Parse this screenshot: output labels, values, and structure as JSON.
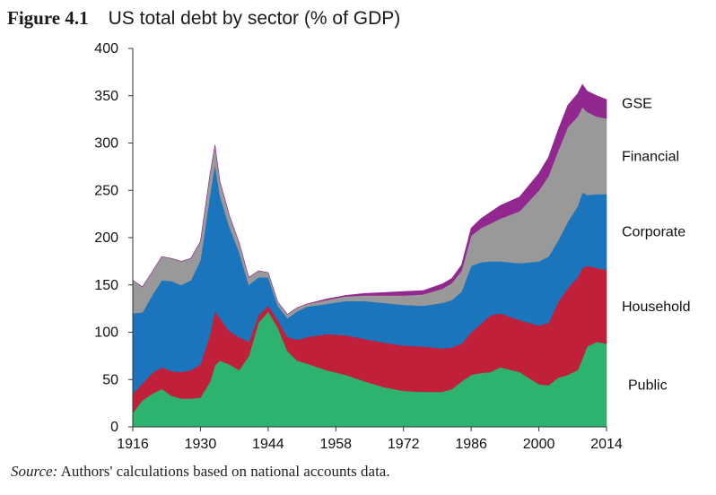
{
  "header": {
    "figure_number": "Figure 4.1",
    "title": "US total debt by sector (% of GDP)"
  },
  "source": {
    "label": "Source:",
    "text": "Authors' calculations based on national accounts data."
  },
  "chart_data": {
    "type": "area",
    "stacked": true,
    "title": "US total debt by sector (% of GDP)",
    "xlabel": "",
    "ylabel": "",
    "xlim": [
      1916,
      2014
    ],
    "ylim": [
      0,
      400
    ],
    "x_ticks": [
      1916,
      1930,
      1944,
      1958,
      1972,
      1986,
      2000,
      2014
    ],
    "y_ticks": [
      0,
      50,
      100,
      150,
      200,
      250,
      300,
      350,
      400
    ],
    "grid": false,
    "legend_placement": "right, labels placed beside each band",
    "x": [
      1916,
      1918,
      1920,
      1922,
      1924,
      1926,
      1928,
      1930,
      1932,
      1933,
      1934,
      1936,
      1938,
      1940,
      1942,
      1944,
      1946,
      1948,
      1950,
      1952,
      1956,
      1960,
      1964,
      1968,
      1972,
      1976,
      1980,
      1982,
      1984,
      1986,
      1988,
      1990,
      1992,
      1996,
      2000,
      2002,
      2004,
      2006,
      2008,
      2009,
      2010,
      2012,
      2014
    ],
    "series": [
      {
        "name": "Public",
        "color": "#2db36f",
        "values": [
          15,
          28,
          35,
          40,
          33,
          30,
          30,
          31,
          48,
          65,
          70,
          66,
          60,
          75,
          110,
          122,
          105,
          80,
          70,
          67,
          60,
          55,
          48,
          42,
          38,
          37,
          37,
          40,
          48,
          55,
          57,
          58,
          63,
          58,
          45,
          44,
          52,
          55,
          60,
          72,
          85,
          90,
          88
        ]
      },
      {
        "name": "Household",
        "color": "#c0203a",
        "values": [
          20,
          18,
          22,
          23,
          26,
          28,
          30,
          35,
          50,
          58,
          45,
          35,
          35,
          15,
          8,
          6,
          8,
          15,
          22,
          28,
          38,
          42,
          45,
          47,
          48,
          48,
          46,
          44,
          40,
          45,
          52,
          60,
          57,
          55,
          62,
          66,
          80,
          92,
          98,
          96,
          85,
          78,
          78
        ]
      },
      {
        "name": "Corporate",
        "color": "#1b75bc",
        "values": [
          85,
          75,
          82,
          92,
          95,
          92,
          95,
          110,
          148,
          155,
          130,
          110,
          90,
          60,
          40,
          30,
          15,
          20,
          30,
          32,
          32,
          36,
          40,
          42,
          43,
          43,
          48,
          50,
          55,
          70,
          65,
          57,
          55,
          60,
          68,
          70,
          65,
          70,
          75,
          80,
          75,
          78,
          80
        ]
      },
      {
        "name": "Financial",
        "color": "#999999",
        "values": [
          35,
          27,
          25,
          25,
          24,
          25,
          23,
          20,
          22,
          20,
          15,
          12,
          10,
          8,
          7,
          5,
          4,
          4,
          4,
          3,
          4,
          5,
          6,
          8,
          10,
          12,
          15,
          18,
          22,
          32,
          36,
          40,
          45,
          55,
          75,
          85,
          95,
          100,
          95,
          90,
          88,
          82,
          80
        ]
      },
      {
        "name": "GSE",
        "color": "#92278f",
        "values": [
          0,
          0,
          0,
          0,
          0,
          0,
          0,
          0,
          0,
          0,
          0,
          0,
          0,
          0,
          0,
          0,
          0,
          0,
          0,
          0,
          1,
          1,
          2,
          3,
          4,
          4,
          5,
          5,
          6,
          8,
          10,
          12,
          14,
          15,
          18,
          20,
          22,
          23,
          24,
          24,
          22,
          22,
          20
        ]
      }
    ]
  }
}
